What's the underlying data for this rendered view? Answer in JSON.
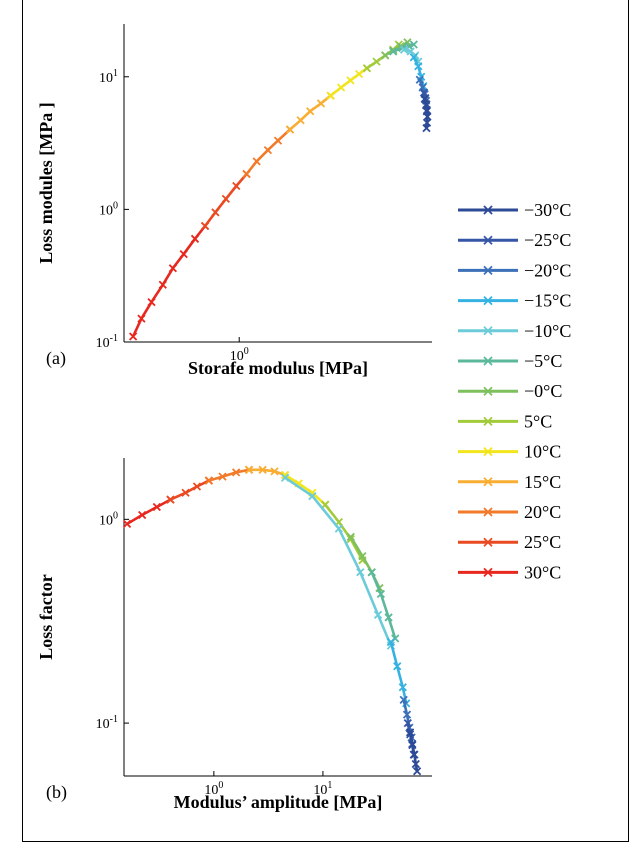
{
  "chart_data": [
    {
      "type": "line",
      "panel_label": "(a)",
      "xlabel": "Storafe modulus [MPa]",
      "ylabel": "Loss modules [MPa ]",
      "xscale": "log",
      "yscale": "log",
      "xlim": [
        0.3,
        7.5
      ],
      "ylim": [
        0.1,
        25
      ],
      "xticks": [
        {
          "value": 1,
          "base": "10",
          "exp": "0"
        }
      ],
      "yticks": [
        {
          "value": 0.1,
          "base": "10",
          "exp": "-1"
        },
        {
          "value": 1,
          "base": "10",
          "exp": "0"
        },
        {
          "value": 10,
          "base": "10",
          "exp": "1"
        }
      ],
      "series": [
        {
          "name": "30°C",
          "color": "#e8271e",
          "points": [
            [
              0.33,
              0.11
            ],
            [
              0.36,
              0.15
            ],
            [
              0.4,
              0.2
            ],
            [
              0.45,
              0.27
            ],
            [
              0.5,
              0.36
            ],
            [
              0.56,
              0.46
            ],
            [
              0.63,
              0.6
            ],
            [
              0.7,
              0.75
            ]
          ]
        },
        {
          "name": "25°C",
          "color": "#ea4a22",
          "points": [
            [
              0.7,
              0.75
            ],
            [
              0.78,
              0.95
            ],
            [
              0.87,
              1.2
            ],
            [
              0.97,
              1.5
            ],
            [
              1.08,
              1.85
            ]
          ]
        },
        {
          "name": "20°C",
          "color": "#f27a2a",
          "points": [
            [
              1.08,
              1.85
            ],
            [
              1.2,
              2.3
            ],
            [
              1.35,
              2.8
            ],
            [
              1.5,
              3.3
            ],
            [
              1.7,
              4.0
            ]
          ]
        },
        {
          "name": "15°C",
          "color": "#f9ad32",
          "points": [
            [
              1.7,
              4.0
            ],
            [
              1.9,
              4.7
            ],
            [
              2.1,
              5.5
            ],
            [
              2.35,
              6.3
            ],
            [
              2.6,
              7.2
            ]
          ]
        },
        {
          "name": "10°C",
          "color": "#f2e51e",
          "points": [
            [
              2.6,
              7.2
            ],
            [
              2.9,
              8.3
            ],
            [
              3.2,
              9.4
            ],
            [
              3.5,
              10.5
            ],
            [
              3.8,
              11.6
            ]
          ]
        },
        {
          "name": "5°C",
          "color": "#a2cb3b",
          "points": [
            [
              3.8,
              11.6
            ],
            [
              4.2,
              13
            ],
            [
              4.6,
              14.5
            ],
            [
              5.0,
              16
            ],
            [
              5.3,
              17.5
            ]
          ]
        },
        {
          "name": "−0°C",
          "color": "#7ebf5e",
          "points": [
            [
              4.6,
              14.5
            ],
            [
              5.0,
              15.8
            ],
            [
              5.4,
              17
            ],
            [
              5.8,
              18.2
            ]
          ]
        },
        {
          "name": "−5°C",
          "color": "#5cb89a",
          "points": [
            [
              5.0,
              15.5
            ],
            [
              5.5,
              16.5
            ],
            [
              5.9,
              17
            ],
            [
              6.2,
              17.5
            ]
          ]
        },
        {
          "name": "−10°C",
          "color": "#6ccbd8",
          "points": [
            [
              5.6,
              16
            ],
            [
              6.0,
              15.5
            ],
            [
              6.3,
              14.5
            ],
            [
              6.5,
              13
            ]
          ]
        },
        {
          "name": "−15°C",
          "color": "#35b2e2",
          "points": [
            [
              6.2,
              14
            ],
            [
              6.5,
              12
            ],
            [
              6.7,
              10
            ],
            [
              6.85,
              8.5
            ]
          ]
        },
        {
          "name": "−20°C",
          "color": "#3c70b8",
          "points": [
            [
              6.6,
              9.5
            ],
            [
              6.8,
              8.3
            ],
            [
              6.95,
              7.4
            ],
            [
              7.05,
              6.6
            ]
          ]
        },
        {
          "name": "−25°C",
          "color": "#3556a6",
          "points": [
            [
              6.9,
              7.6
            ],
            [
              7.0,
              6.9
            ],
            [
              7.08,
              6.2
            ],
            [
              7.12,
              5.6
            ]
          ]
        },
        {
          "name": "−30°C",
          "color": "#2c4a96",
          "points": [
            [
              6.95,
              6.8
            ],
            [
              7.05,
              6.1
            ],
            [
              7.1,
              5.5
            ],
            [
              7.15,
              5.0
            ],
            [
              7.12,
              4.5
            ],
            [
              7.08,
              4.1
            ]
          ]
        }
      ]
    },
    {
      "type": "line",
      "panel_label": "(b)",
      "xlabel": "Modulus’ amplitude [MPa]",
      "ylabel": "Loss factor",
      "xscale": "log",
      "yscale": "log",
      "xlim": [
        0.15,
        100
      ],
      "ylim": [
        0.055,
        2.0
      ],
      "xticks": [
        {
          "value": 1,
          "base": "10",
          "exp": "0"
        },
        {
          "value": 10,
          "base": "10",
          "exp": "1"
        }
      ],
      "yticks": [
        {
          "value": 0.1,
          "base": "10",
          "exp": "-1"
        },
        {
          "value": 1,
          "base": "10",
          "exp": "0"
        }
      ],
      "series": [
        {
          "name": "30°C",
          "color": "#e8271e",
          "points": [
            [
              0.16,
              0.95
            ],
            [
              0.22,
              1.05
            ],
            [
              0.3,
              1.15
            ],
            [
              0.4,
              1.25
            ]
          ]
        },
        {
          "name": "25°C",
          "color": "#ea4a22",
          "points": [
            [
              0.4,
              1.25
            ],
            [
              0.55,
              1.35
            ],
            [
              0.7,
              1.45
            ],
            [
              0.9,
              1.55
            ]
          ]
        },
        {
          "name": "20°C",
          "color": "#f27a2a",
          "points": [
            [
              0.9,
              1.55
            ],
            [
              1.2,
              1.62
            ],
            [
              1.6,
              1.7
            ],
            [
              2.1,
              1.75
            ]
          ]
        },
        {
          "name": "15°C",
          "color": "#f9ad32",
          "points": [
            [
              2.1,
              1.75
            ],
            [
              2.8,
              1.75
            ],
            [
              3.6,
              1.72
            ],
            [
              4.5,
              1.65
            ]
          ]
        },
        {
          "name": "10°C",
          "color": "#f2e51e",
          "points": [
            [
              4.5,
              1.65
            ],
            [
              6,
              1.5
            ],
            [
              8,
              1.35
            ],
            [
              10.5,
              1.18
            ]
          ]
        },
        {
          "name": "5°C",
          "color": "#a2cb3b",
          "points": [
            [
              10.5,
              1.18
            ],
            [
              14,
              0.97
            ],
            [
              18,
              0.8
            ],
            [
              23,
              0.63
            ]
          ]
        },
        {
          "name": "−0°C",
          "color": "#7ebf5e",
          "points": [
            [
              18,
              0.82
            ],
            [
              23,
              0.66
            ],
            [
              28,
              0.55
            ],
            [
              33,
              0.46
            ]
          ]
        },
        {
          "name": "−5°C",
          "color": "#5cb89a",
          "points": [
            [
              28,
              0.55
            ],
            [
              34,
              0.43
            ],
            [
              40,
              0.33
            ],
            [
              46,
              0.26
            ]
          ]
        },
        {
          "name": "−10°C",
          "color": "#6ccbd8",
          "points": [
            [
              4.5,
              1.6
            ],
            [
              8,
              1.3
            ],
            [
              14,
              0.9
            ],
            [
              22,
              0.55
            ],
            [
              32,
              0.34
            ],
            [
              42,
              0.24
            ]
          ]
        },
        {
          "name": "−15°C",
          "color": "#35b2e2",
          "points": [
            [
              42,
              0.25
            ],
            [
              48,
              0.19
            ],
            [
              54,
              0.15
            ],
            [
              58,
              0.125
            ]
          ]
        },
        {
          "name": "−20°C",
          "color": "#3c70b8",
          "points": [
            [
              55,
              0.13
            ],
            [
              59,
              0.11
            ],
            [
              62,
              0.095
            ],
            [
              65,
              0.085
            ]
          ]
        },
        {
          "name": "−25°C",
          "color": "#3556a6",
          "points": [
            [
              60,
              0.1
            ],
            [
              63,
              0.088
            ],
            [
              66,
              0.078
            ],
            [
              68,
              0.07
            ]
          ]
        },
        {
          "name": "−30°C",
          "color": "#2c4a96",
          "points": [
            [
              63,
              0.09
            ],
            [
              66,
              0.079
            ],
            [
              69,
              0.07
            ],
            [
              71,
              0.063
            ],
            [
              73,
              0.058
            ]
          ]
        }
      ]
    }
  ],
  "legend": {
    "placement": "right",
    "entries": [
      {
        "label": "−30°C",
        "color": "#2c4a96"
      },
      {
        "label": "−25°C",
        "color": "#3556a6"
      },
      {
        "label": "−20°C",
        "color": "#3c70b8"
      },
      {
        "label": "−15°C",
        "color": "#35b2e2"
      },
      {
        "label": "−10°C",
        "color": "#6ccbd8"
      },
      {
        "label": "−5°C",
        "color": "#5cb89a"
      },
      {
        "label": "−0°C",
        "color": "#7ebf5e"
      },
      {
        "label": "5°C",
        "color": "#a2cb3b"
      },
      {
        "label": "10°C",
        "color": "#f2e51e"
      },
      {
        "label": "15°C",
        "color": "#f9ad32"
      },
      {
        "label": "20°C",
        "color": "#f27a2a"
      },
      {
        "label": "25°C",
        "color": "#ea4a22"
      },
      {
        "label": "30°C",
        "color": "#e8271e"
      }
    ]
  }
}
